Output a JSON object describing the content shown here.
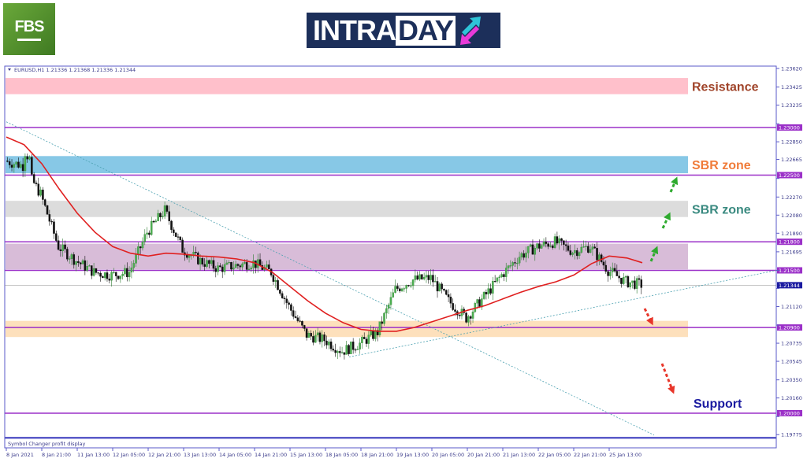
{
  "logos": {
    "fbs": "FBS",
    "intraday_a": "INTRA",
    "intraday_b": "DAY"
  },
  "colors": {
    "bull": "#2e7d32",
    "bear": "#111111",
    "ma": "#e02020",
    "level": "#9b30c8",
    "trend": "#4aa0b0",
    "up_arrow": "#2eaa2e",
    "down_arrow": "#e8362a"
  },
  "chart_data": {
    "type": "candlestick",
    "header": "EURUSD,H1  1.21336 1.21368 1.21336 1.21344",
    "footer": "Symbol Changer profit display",
    "ylim": [
      1.197,
      1.237
    ],
    "y_ticks": [
      "1.23620",
      "1.23425",
      "1.23235",
      "1.23040",
      "1.22850",
      "1.22665",
      "1.22465",
      "1.22270",
      "1.22080",
      "1.21890",
      "1.21695",
      "1.21500",
      "1.21310",
      "1.21120",
      "1.20925",
      "1.20735",
      "1.20545",
      "1.20350",
      "1.20160",
      "1.19965",
      "1.19775"
    ],
    "x_ticks": [
      "8 Jan 2021",
      "8 Jan 21:00",
      "11 Jan 13:00",
      "12 Jan 05:00",
      "12 Jan 21:00",
      "13 Jan 13:00",
      "14 Jan 05:00",
      "14 Jan 21:00",
      "15 Jan 13:00",
      "18 Jan 05:00",
      "18 Jan 21:00",
      "19 Jan 13:00",
      "20 Jan 05:00",
      "20 Jan 21:00",
      "21 Jan 13:00",
      "22 Jan 05:00",
      "22 Jan 21:00",
      "25 Jan 13:00"
    ],
    "price_path_half_tick": [
      1.2265,
      1.226,
      1.223,
      1.2175,
      1.216,
      1.2148,
      1.2145,
      1.2148,
      1.219,
      1.2213,
      1.2172,
      1.216,
      1.2152,
      1.2155,
      1.2158,
      1.2148,
      1.2112,
      1.2082,
      1.2077,
      1.2065,
      1.2073,
      1.2085,
      1.213,
      1.214,
      1.2142,
      1.2118,
      1.21,
      1.2122,
      1.2145,
      1.2165,
      1.2175,
      1.218,
      1.217,
      1.2175,
      1.215,
      1.2138,
      1.21344
    ],
    "moving_average_half_tick": [
      1.229,
      1.2282,
      1.2262,
      1.2235,
      1.221,
      1.219,
      1.2175,
      1.2168,
      1.2165,
      1.2168,
      1.2167,
      1.2165,
      1.2164,
      1.2162,
      1.2158,
      1.2148,
      1.2133,
      1.2118,
      1.2105,
      1.2095,
      1.2088,
      1.2086,
      1.2086,
      1.209,
      1.2096,
      1.2102,
      1.2108,
      1.2113,
      1.212,
      1.2127,
      1.2133,
      1.2138,
      1.2145,
      1.2157,
      1.2165,
      1.2163,
      1.2158
    ],
    "levels": [
      {
        "price": 1.23,
        "label": "1.23000"
      },
      {
        "price": 1.225,
        "label": "1.22500"
      },
      {
        "price": 1.218,
        "label": "1.21800"
      },
      {
        "price": 1.215,
        "label": "1.21500"
      },
      {
        "price": 1.209,
        "label": "1.20900"
      },
      {
        "price": 1.2,
        "label": "1.20000"
      }
    ],
    "current_price": {
      "price": 1.21344,
      "label": "1.21344"
    },
    "zones": [
      {
        "from": 1.2335,
        "to": 1.2352,
        "color": "#ffc0cb",
        "label": "Resistance",
        "label_color": "#a0442a"
      },
      {
        "from": 1.2252,
        "to": 1.227,
        "color": "#87c8e6",
        "label": "SBR zone",
        "label_color": "#f07c3a"
      },
      {
        "from": 1.2206,
        "to": 1.2223,
        "color": "#dcdcdc",
        "label": "SBR zone",
        "label_color": "#3a8a80"
      },
      {
        "from": 1.2151,
        "to": 1.2178,
        "color": "#d8bcd8",
        "label": "",
        "label_color": ""
      },
      {
        "from": 1.208,
        "to": 1.2097,
        "color": "#fde0bc",
        "label": "",
        "label_color": ""
      },
      {
        "from": 1.2,
        "to": 1.2,
        "color": "none",
        "label": "Support",
        "label_color": "#1a1aa0"
      }
    ],
    "trendlines": [
      {
        "from": [
          "8 Jan 2021",
          1.2306
        ],
        "to": [
          "after 25 Jan 13:00",
          1.1977
        ]
      },
      {
        "from": [
          "18 Jan 05:00",
          1.2059
        ],
        "to": [
          "chart right edge",
          1.215
        ]
      }
    ]
  }
}
